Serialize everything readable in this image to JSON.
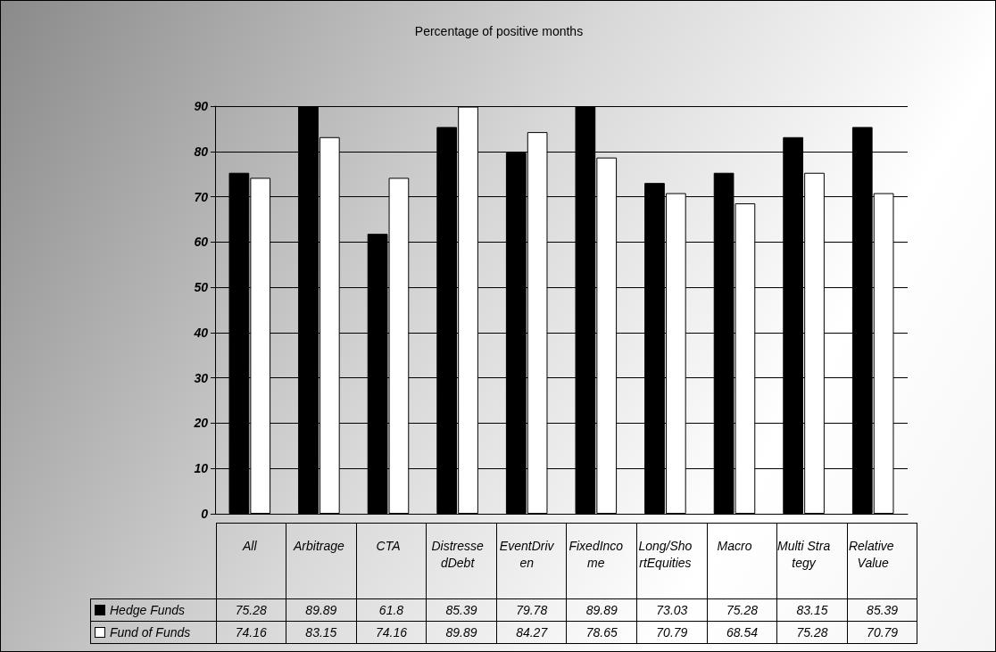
{
  "chart_data": {
    "type": "bar",
    "title": "Percentage of positive months",
    "categories": [
      "All",
      "Arbitrage",
      "CTA",
      "DistressedDebt",
      "EventDriven",
      "FixedIncome",
      "Long/ShortEquities",
      "Macro",
      "Multi Strategy",
      "Relative Value"
    ],
    "series": [
      {
        "name": "Hedge Funds",
        "color": "#000000",
        "values": [
          75.28,
          89.89,
          61.8,
          85.39,
          79.78,
          89.89,
          73.03,
          75.28,
          83.15,
          85.39
        ]
      },
      {
        "name": "Fund of Funds",
        "color": "#ffffff",
        "values": [
          74.16,
          83.15,
          74.16,
          89.89,
          84.27,
          78.65,
          70.79,
          68.54,
          75.28,
          70.79
        ]
      }
    ],
    "ylim": [
      0,
      90
    ],
    "yticks": [
      0,
      10,
      20,
      30,
      40,
      50,
      60,
      70,
      80,
      90
    ],
    "grid": "y",
    "legend": "bottom left",
    "data_labels": true
  }
}
